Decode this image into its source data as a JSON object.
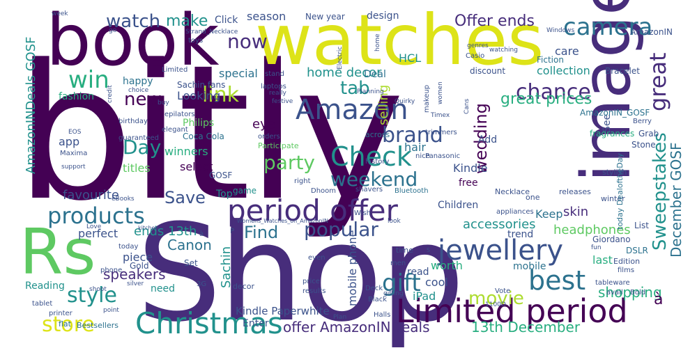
{
  "colors": {
    "dark_purple": "#440154",
    "indigo": "#472d7b",
    "blue": "#3b528b",
    "slate": "#2c728e",
    "teal": "#21918c",
    "sea_green": "#28ae80",
    "green": "#5ec962",
    "lime": "#addc30",
    "yellow": "#dde318"
  },
  "words": {
    "bitly": "bitly",
    "shop": "Shop",
    "watches": "watches",
    "book": "book",
    "image": "image",
    "rs": "Rs",
    "limited_period": "Limited period",
    "christmas": "Christmas",
    "period_offer": "period offer",
    "jewellery": "jewellery",
    "check": "Check",
    "amazon": "Amazon",
    "best": "best",
    "camera": "camera",
    "products": "products",
    "win": "win",
    "chance": "chance",
    "link": "link",
    "now": "now",
    "watch": "watch",
    "make": "make",
    "offer_ends": "Offer ends",
    "great": "great",
    "tab": "tab",
    "brand": "brand",
    "day": "Day",
    "party": "party",
    "weekend": "weekend",
    "popular": "popular",
    "find": "Find",
    "gift": "gift",
    "style": "style",
    "store": "store",
    "movie": "movie",
    "sweepstakes": "Sweepstakes",
    "save": "Save",
    "new": "new",
    "great_prices": "great prices",
    "wedding": "wedding",
    "home_decor": "home decor",
    "offer_amazonindeals": "offer AmazonINDeals",
    "thirteenth_december": "13th December",
    "december_gosf": "December GOSF",
    "amazonindeals_gosf": "AmazonINDeals GOSF",
    "ends_13th": "ends 13th",
    "kindle_paperwhite": "Kindle Paperwhite",
    "shopping": "shopping",
    "headphones": "headphones",
    "accessories": "accessories",
    "canon": "Canon",
    "sachin": "Sachin",
    "speakers": "speakers",
    "selling": "selling",
    "mobile_phone": "mobile phone",
    "a_grave": "à",
    "select": "select",
    "favourite": "favourite",
    "collection": "collection",
    "season": "season",
    "click": "Click",
    "design": "design",
    "new_year": "New year",
    "special": "special",
    "looking": "Looking",
    "fashion": "fashion",
    "happy": "happy",
    "app": "app",
    "titles": "titles",
    "winners": "winners",
    "philips": "Philips",
    "coca_cola": "Coca Cola",
    "eye": "eye",
    "hair": "hair",
    "kindle": "Kindle",
    "children": "Children",
    "free": "free",
    "keep": "Keep",
    "skin": "skin",
    "trend": "trend",
    "worth": "worth",
    "cool": "cool",
    "mobile": "mobile",
    "last": "last",
    "ipad": "iPad",
    "read": "read",
    "reading": "Reading",
    "need": "need",
    "perfect": "perfect",
    "piece": "piece",
    "gosf": "GOSF",
    "top": "Top",
    "enter": "Enter",
    "deal": "Deal",
    "hcl": "HCL",
    "care": "care",
    "see": "See",
    "add": "Add",
    "amazonin": "AmazonIN",
    "fiction": "Fiction",
    "bracelet": "Bracelet",
    "discount": "discount",
    "amazonin_gosf": "AmazonIN_GOSF",
    "grab": "Grab",
    "stone": "Stone",
    "berry": "Berry",
    "fragrances": "fragrances",
    "stylish": "stylish",
    "winter": "winter",
    "dslr": "DSLR",
    "edition": "Edition",
    "films": "films",
    "tableware": "tableware",
    "avail": "avail",
    "bold": "Bold",
    "vote": "Vote",
    "deck": "Deck",
    "black": "Black",
    "gifting": "gifting",
    "halls": "Halls",
    "bestsellers": "Bestsellers",
    "flat": "flat",
    "tablet": "tablet",
    "printer": "printer",
    "shoot": "shoot",
    "point": "point",
    "silver": "silver",
    "gold": "Gold",
    "phone": "phone",
    "today": "today",
    "set": "Set",
    "giordano": "Giordano",
    "list": "List",
    "today_dealoftheday": "today DealoftheDay",
    "releases": "releases",
    "appliances": "appliances",
    "one": "one",
    "necklace": "Necklace",
    "bluetooth": "Bluetooth",
    "shavers": "shavers",
    "dhoom": "Dhoom",
    "wish": "Wish",
    "look": "look",
    "womens_watches": "Womens_Watches_on_AmazonIN",
    "men": "men",
    "time": "time",
    "even": "even",
    "price": "price",
    "results": "results",
    "three_g": "3G",
    "plan": "Plan",
    "decor": "decor",
    "game": "game",
    "right": "right",
    "nice": "nice",
    "panasonic": "Panasonic",
    "history": "history",
    "orders": "orders",
    "across": "across",
    "participate": "Participate",
    "guaranteed": "guaranteed",
    "elegant": "elegant",
    "birthday": "birthday",
    "eos": "EOS",
    "maxima": "Maxima",
    "support": "support",
    "ebooks": "eBooks",
    "love": "Love",
    "kitchen": "kitchen",
    "epilators": "epilators",
    "sachin_fans": "Sachin fans",
    "choice": "choice",
    "limited": "Limited",
    "credit": "credit",
    "buy": "buy",
    "laptops": "laptops",
    "stand": "stand",
    "really": "really",
    "festive": "festive",
    "planning": "Planning",
    "quirky": "Quirky",
    "makeup": "makeup",
    "trimmers": "trimmers",
    "timex": "Timex",
    "casio": "Casio",
    "genres": "genres",
    "women": "women",
    "electric": "Electric",
    "home": "home",
    "watching": "watching",
    "windows": "Windows",
    "strand_necklace": "Strand_Necklace",
    "toys": "toys",
    "go": "go",
    "week": "week",
    "cans": "Cans",
    "p": "P",
    "a_small": "à",
    "s_small": "S",
    "fun": "fun",
    "num_1100d": "1100D"
  }
}
